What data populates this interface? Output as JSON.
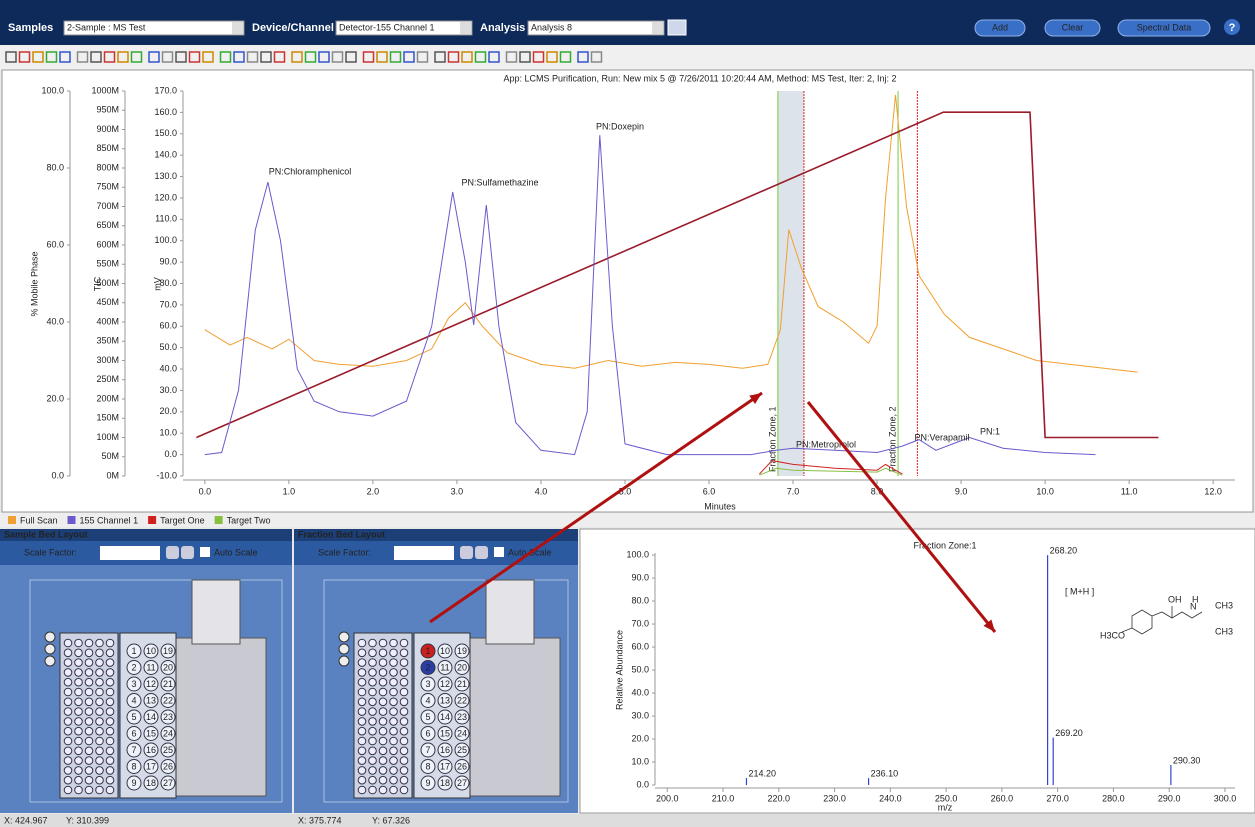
{
  "header": {
    "samples_label": "Samples",
    "samples_value": "2-Sample : MS Test",
    "device_label": "Device/Channel",
    "device_value": "Detector-155 Channel 1",
    "analysis_label": "Analysis",
    "analysis_value": "Analysis 8",
    "buttons": [
      "Add",
      "Clear",
      "Spectral Data"
    ],
    "help": "?"
  },
  "chromatogram": {
    "title": "App: LCMS Purification, Run: New mix 5 @ 7/26/2011 10:20:44 AM, Method: MS Test, Iter: 2, Inj: 2",
    "x_label": "Minutes",
    "xlim": [
      -0.26,
      12.26
    ],
    "xticks": [
      {
        "value": 0,
        "label": "0.0"
      },
      {
        "value": 1,
        "label": "1.0"
      },
      {
        "value": 2,
        "label": "2.0"
      },
      {
        "value": 3,
        "label": "3.0"
      },
      {
        "value": 4,
        "label": "4.0"
      },
      {
        "value": 5,
        "label": "5.0"
      },
      {
        "value": 6,
        "label": "6.0"
      },
      {
        "value": 7,
        "label": "7.0"
      },
      {
        "value": 8,
        "label": "8.0"
      },
      {
        "value": 9,
        "label": "9.0"
      },
      {
        "value": 10,
        "label": "10.0"
      },
      {
        "value": 11,
        "label": "11.0"
      },
      {
        "value": 12,
        "label": "12.0"
      }
    ],
    "mobile_label": "% Mobile Phase",
    "mobile_lim": [
      0,
      100
    ],
    "mobile_ticks": [
      {
        "value": 0,
        "label": "0.0"
      },
      {
        "value": 20,
        "label": "20.0"
      },
      {
        "value": 40,
        "label": "40.0"
      },
      {
        "value": 60,
        "label": "60.0"
      },
      {
        "value": 80,
        "label": "80.0"
      },
      {
        "value": 100,
        "label": "100.0"
      }
    ],
    "tic_label": "TIC",
    "tic_lim": [
      0,
      1000000000
    ],
    "tic_ticks": [
      {
        "value": 0,
        "label": "0M"
      },
      {
        "value": 50000000,
        "label": "50M"
      },
      {
        "value": 100000000,
        "label": "100M"
      },
      {
        "value": 150000000,
        "label": "150M"
      },
      {
        "value": 200000000,
        "label": "200M"
      },
      {
        "value": 250000000,
        "label": "250M"
      },
      {
        "value": 300000000,
        "label": "300M"
      },
      {
        "value": 350000000,
        "label": "350M"
      },
      {
        "value": 400000000,
        "label": "400M"
      },
      {
        "value": 450000000,
        "label": "450M"
      },
      {
        "value": 500000000,
        "label": "500M"
      },
      {
        "value": 550000000,
        "label": "550M"
      },
      {
        "value": 600000000,
        "label": "600M"
      },
      {
        "value": 650000000,
        "label": "650M"
      },
      {
        "value": 700000000,
        "label": "700M"
      },
      {
        "value": 750000000,
        "label": "750M"
      },
      {
        "value": 800000000,
        "label": "800M"
      },
      {
        "value": 850000000,
        "label": "850M"
      },
      {
        "value": 900000000,
        "label": "900M"
      },
      {
        "value": 950000000,
        "label": "950M"
      },
      {
        "value": 1000000000,
        "label": "1000M"
      }
    ],
    "mv_label": "mV",
    "mv_lim": [
      -10,
      170
    ],
    "mv_ticks": [
      {
        "value": -10,
        "label": "-10.0"
      },
      {
        "value": 0,
        "label": "0.0"
      },
      {
        "value": 10,
        "label": "10.0"
      },
      {
        "value": 20,
        "label": "20.0"
      },
      {
        "value": 30,
        "label": "30.0"
      },
      {
        "value": 40,
        "label": "40.0"
      },
      {
        "value": 50,
        "label": "50.0"
      },
      {
        "value": 60,
        "label": "60.0"
      },
      {
        "value": 70,
        "label": "70.0"
      },
      {
        "value": 80,
        "label": "80.0"
      },
      {
        "value": 90,
        "label": "90.0"
      },
      {
        "value": 100,
        "label": "100.0"
      },
      {
        "value": 110,
        "label": "110.0"
      },
      {
        "value": 120,
        "label": "120.0"
      },
      {
        "value": 130,
        "label": "130.0"
      },
      {
        "value": 140,
        "label": "140.0"
      },
      {
        "value": 150,
        "label": "150.0"
      },
      {
        "value": 160,
        "label": "160.0"
      },
      {
        "value": 170,
        "label": "170.0"
      }
    ],
    "series": [
      {
        "axis": "mobile",
        "color": "#9b1b2a",
        "x": [
          -0.1,
          8.79,
          9.82,
          10.0,
          11.35
        ],
        "values": [
          10,
          94.5,
          94.5,
          10,
          10
        ]
      },
      {
        "name": "Full Scan",
        "axis": "tic",
        "color": "#f0a030",
        "x": [
          0,
          0.3,
          0.5,
          0.8,
          1.0,
          1.3,
          1.6,
          2.0,
          2.4,
          2.7,
          2.9,
          3.1,
          3.3,
          3.6,
          4.0,
          4.4,
          4.8,
          5.2,
          5.6,
          6.0,
          6.4,
          6.7,
          6.85,
          6.95,
          7.1,
          7.3,
          7.6,
          7.9,
          8.0,
          8.1,
          8.22,
          8.35,
          8.5,
          8.8,
          9.1,
          9.5,
          9.9,
          10.3,
          10.7,
          11.1
        ],
        "values": [
          380000000,
          340000000,
          360000000,
          330000000,
          355000000,
          300000000,
          290000000,
          285000000,
          300000000,
          330000000,
          410000000,
          450000000,
          390000000,
          320000000,
          290000000,
          280000000,
          300000000,
          285000000,
          295000000,
          290000000,
          280000000,
          290000000,
          380000000,
          640000000,
          540000000,
          440000000,
          400000000,
          345000000,
          390000000,
          720000000,
          990000000,
          700000000,
          520000000,
          420000000,
          360000000,
          330000000,
          300000000,
          290000000,
          280000000,
          270000000
        ]
      },
      {
        "name": "155 Channel 1",
        "axis": "mv",
        "color": "#6a5acd",
        "x": [
          0.0,
          0.2,
          0.4,
          0.6,
          0.75,
          0.9,
          1.1,
          1.3,
          1.6,
          2.0,
          2.4,
          2.7,
          2.95,
          3.1,
          3.2,
          3.35,
          3.5,
          3.7,
          4.0,
          4.4,
          4.55,
          4.7,
          4.85,
          5.0,
          5.5,
          6.0,
          6.5,
          6.8,
          7.0,
          7.5,
          8.0,
          8.3,
          8.5,
          8.7,
          8.9,
          9.1,
          9.5,
          10.0,
          10.6
        ],
        "values": [
          0,
          1,
          30,
          105,
          127.4,
          100,
          40,
          25,
          20,
          18,
          25,
          60,
          122.8,
          90,
          60.6,
          116.7,
          60,
          15,
          2,
          0,
          20,
          149.4,
          60,
          5,
          0,
          0,
          0,
          2,
          3,
          2,
          1,
          4,
          7,
          2,
          5,
          8,
          3,
          1,
          0
        ]
      },
      {
        "name": "Target One",
        "axis": "tic",
        "color": "#d02020",
        "x": [
          6.6,
          6.75,
          7.0,
          7.5,
          8.0,
          8.1,
          8.3
        ],
        "values": [
          5000000,
          40000000,
          30000000,
          20000000,
          15000000,
          30000000,
          5000000
        ]
      },
      {
        "name": "Target Two",
        "axis": "tic",
        "color": "#88c040",
        "x": [
          6.6,
          6.8,
          7.0,
          8.0,
          8.1,
          8.3
        ],
        "values": [
          2000000,
          20000000,
          15000000,
          10000000,
          20000000,
          2000000
        ]
      }
    ],
    "peak_labels": [
      "PN:Chloramphenicol",
      "PN:Sulfamethazine",
      "PN:Doxepin",
      "PN:Metroprolol",
      "PN:Verapamil",
      "PN:1"
    ],
    "fraction_zones": [
      {
        "label": "Fraction Zone, 1",
        "start": 6.82,
        "end": 7.13
      },
      {
        "label": "Fraction Zone, 2",
        "start": 8.25,
        "end": 8.48
      }
    ]
  },
  "sample_bed": {
    "title": "Sample Bed Layout",
    "scale_label": "Scale Factor:",
    "auto_scale": "Auto Scale",
    "vials": [
      "1",
      "2",
      "3",
      "4",
      "5",
      "6",
      "7",
      "8",
      "9",
      "10",
      "11",
      "12",
      "13",
      "14",
      "15",
      "16",
      "17",
      "18",
      "19",
      "20",
      "21",
      "22",
      "23",
      "24",
      "25",
      "26",
      "27"
    ]
  },
  "fraction_bed": {
    "title": "Fraction Bed Layout",
    "scale_label": "Scale Factor:",
    "auto_scale": "Auto Scale",
    "vials": [
      "1",
      "2",
      "3",
      "4",
      "5",
      "6",
      "7",
      "8",
      "9",
      "10",
      "11",
      "12",
      "13",
      "14",
      "15",
      "16",
      "17",
      "18",
      "19",
      "20",
      "21",
      "22",
      "23",
      "24",
      "25",
      "26",
      "27"
    ]
  },
  "spectrum": {
    "title": "Fraction Zone:1",
    "x_label": "m/z",
    "y_label": "Relative Abundance",
    "xlim": [
      197.8,
      301.8
    ],
    "xticks": [
      {
        "value": 200,
        "label": "200.0"
      },
      {
        "value": 210,
        "label": "210.0"
      },
      {
        "value": 220,
        "label": "220.0"
      },
      {
        "value": 230,
        "label": "230.0"
      },
      {
        "value": 240,
        "label": "240.0"
      },
      {
        "value": 250,
        "label": "250.0"
      },
      {
        "value": 260,
        "label": "260.0"
      },
      {
        "value": 270,
        "label": "270.0"
      },
      {
        "value": 280,
        "label": "280.0"
      },
      {
        "value": 290,
        "label": "290.0"
      },
      {
        "value": 300,
        "label": "300.0"
      }
    ],
    "ylim": [
      0,
      100.9
    ],
    "yticks": [
      {
        "value": 0,
        "label": "0.0"
      },
      {
        "value": 10,
        "label": "10.0"
      },
      {
        "value": 20,
        "label": "20.0"
      },
      {
        "value": 30,
        "label": "30.0"
      },
      {
        "value": 40,
        "label": "40.0"
      },
      {
        "value": 50,
        "label": "50.0"
      },
      {
        "value": 60,
        "label": "60.0"
      },
      {
        "value": 70,
        "label": "70.0"
      },
      {
        "value": 80,
        "label": "80.0"
      },
      {
        "value": 90,
        "label": "90.0"
      },
      {
        "value": 100,
        "label": "100.0"
      }
    ],
    "color": "#3344cc",
    "label_color": "#cc3333",
    "x": [
      214.2,
      236.1,
      268.2,
      269.2,
      290.3
    ],
    "x_labels": [
      "214.20",
      "236.10",
      "268.20",
      "269.20",
      "290.30"
    ],
    "values": [
      3,
      3,
      100,
      20.6,
      8.7
    ],
    "annotation": "[ M+H ]",
    "structure_labels": [
      "OH",
      "H",
      "N",
      "CH3",
      "CH3",
      "H3CO"
    ]
  },
  "status": [
    "X: 424.967",
    "Y: 310.399",
    "X: 375.774",
    "Y: 67.326"
  ]
}
